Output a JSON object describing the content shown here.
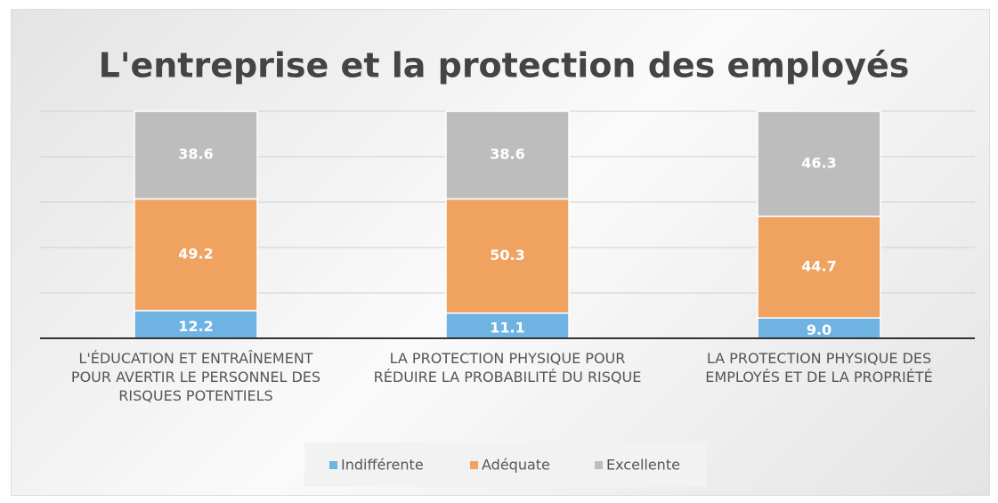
{
  "chart_data": {
    "type": "stacked_bar",
    "title": "L'entreprise et la protection des employés",
    "categories": [
      "L'ÉDUCATION ET ENTRAÎNEMENT\nPOUR AVERTIR LE PERSONNEL DES\nRISQUES POTENTIELS",
      "LA PROTECTION PHYSIQUE POUR\nRÉDUIRE LA PROBABILITÉ DU RISQUE",
      "LA PROTECTION PHYSIQUE DES\nEMPLOYÉS ET DE LA PROPRIÉTÉ"
    ],
    "series": [
      {
        "name": "Indifférente",
        "color": "#6fb3e3",
        "values": [
          12.2,
          11.1,
          9.0
        ],
        "value_labels": [
          "12.2",
          "11.1",
          "9.0"
        ]
      },
      {
        "name": "Adéquate",
        "color": "#f0a260",
        "values": [
          49.2,
          50.3,
          44.7
        ]
      },
      {
        "name": "Excellente",
        "color": "#bdbdbd",
        "values": [
          38.6,
          38.6,
          46.3
        ]
      }
    ],
    "ylim": [
      0,
      100
    ],
    "yticks": [
      0,
      20,
      40,
      60,
      80,
      100
    ],
    "grid": true
  }
}
